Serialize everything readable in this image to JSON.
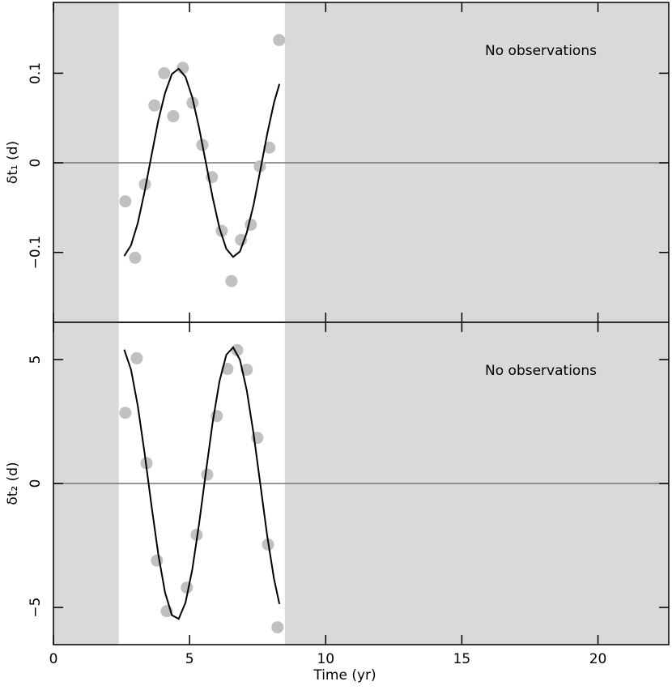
{
  "chart_data": [
    {
      "type": "scatter",
      "y_label": "δt₁ (d)",
      "annotation": "No observations",
      "xlim": [
        0,
        22.6
      ],
      "xticks": [
        0,
        5,
        10,
        15,
        20
      ],
      "ylim": [
        -0.178,
        0.179
      ],
      "yticks": [
        {
          "value": -0.1,
          "label": "−0.1"
        },
        0,
        0.1
      ],
      "shaded_regions": [
        [
          0,
          2.4
        ],
        [
          8.5,
          22.6
        ]
      ],
      "reference_line": 0,
      "series": [
        {
          "style": "points",
          "color": "#c0c0c0",
          "x": [
            2.64,
            3.0,
            3.36,
            3.71,
            4.07,
            4.4,
            4.75,
            5.11,
            5.47,
            5.82,
            6.18,
            6.54,
            6.89,
            7.25,
            7.58,
            7.93,
            8.29
          ],
          "y": [
            -0.043,
            -0.106,
            -0.024,
            0.064,
            0.1,
            0.052,
            0.106,
            0.067,
            0.02,
            -0.016,
            -0.076,
            -0.132,
            -0.086,
            -0.069,
            -0.004,
            0.017,
            0.137
          ]
        },
        {
          "style": "line",
          "color": "#000000",
          "x": [
            2.6,
            2.85,
            3.1,
            3.35,
            3.6,
            3.85,
            4.1,
            4.35,
            4.6,
            4.85,
            5.1,
            5.35,
            5.6,
            5.85,
            6.1,
            6.35,
            6.6,
            6.85,
            7.1,
            7.35,
            7.6,
            7.85,
            8.1,
            8.3
          ],
          "y": [
            -0.104,
            -0.092,
            -0.067,
            -0.032,
            0.008,
            0.047,
            0.078,
            0.099,
            0.105,
            0.096,
            0.073,
            0.039,
            0.0,
            -0.039,
            -0.073,
            -0.096,
            -0.105,
            -0.099,
            -0.078,
            -0.047,
            -0.008,
            0.032,
            0.067,
            0.088
          ]
        }
      ]
    },
    {
      "type": "scatter",
      "y_label": "δt₂ (d)",
      "x_label": "Time (yr)",
      "annotation": "No observations",
      "xlim": [
        0,
        22.6
      ],
      "xticks": [
        0,
        5,
        10,
        15,
        20
      ],
      "ylim": [
        -6.5,
        6.5
      ],
      "yticks": [
        {
          "value": -5,
          "label": "−5"
        },
        0,
        5
      ],
      "shaded_regions": [
        [
          0,
          2.4
        ],
        [
          8.5,
          22.6
        ]
      ],
      "reference_line": 0,
      "series": [
        {
          "style": "points",
          "color": "#c0c0c0",
          "x": [
            2.64,
            3.06,
            3.42,
            3.8,
            4.16,
            4.9,
            5.26,
            5.65,
            6.0,
            6.39,
            6.75,
            7.1,
            7.49,
            7.88,
            8.23
          ],
          "y": [
            2.85,
            5.05,
            0.82,
            -3.11,
            -5.15,
            -4.2,
            -2.07,
            0.36,
            2.72,
            4.62,
            5.38,
            4.59,
            1.84,
            -2.46,
            -5.8
          ]
        },
        {
          "style": "line",
          "color": "#000000",
          "x": [
            2.6,
            2.85,
            3.1,
            3.35,
            3.6,
            3.85,
            4.1,
            4.35,
            4.6,
            4.85,
            5.1,
            5.35,
            5.6,
            5.85,
            6.1,
            6.35,
            6.6,
            6.85,
            7.1,
            7.35,
            7.6,
            7.85,
            8.1,
            8.3
          ],
          "y": [
            5.4,
            4.59,
            3.12,
            1.21,
            -0.88,
            -2.85,
            -4.4,
            -5.31,
            -5.46,
            -4.81,
            -3.47,
            -1.62,
            0.46,
            2.48,
            4.13,
            5.19,
            5.49,
            4.99,
            3.76,
            2.01,
            -0.04,
            -2.1,
            -3.84,
            -4.86
          ]
        }
      ]
    }
  ]
}
